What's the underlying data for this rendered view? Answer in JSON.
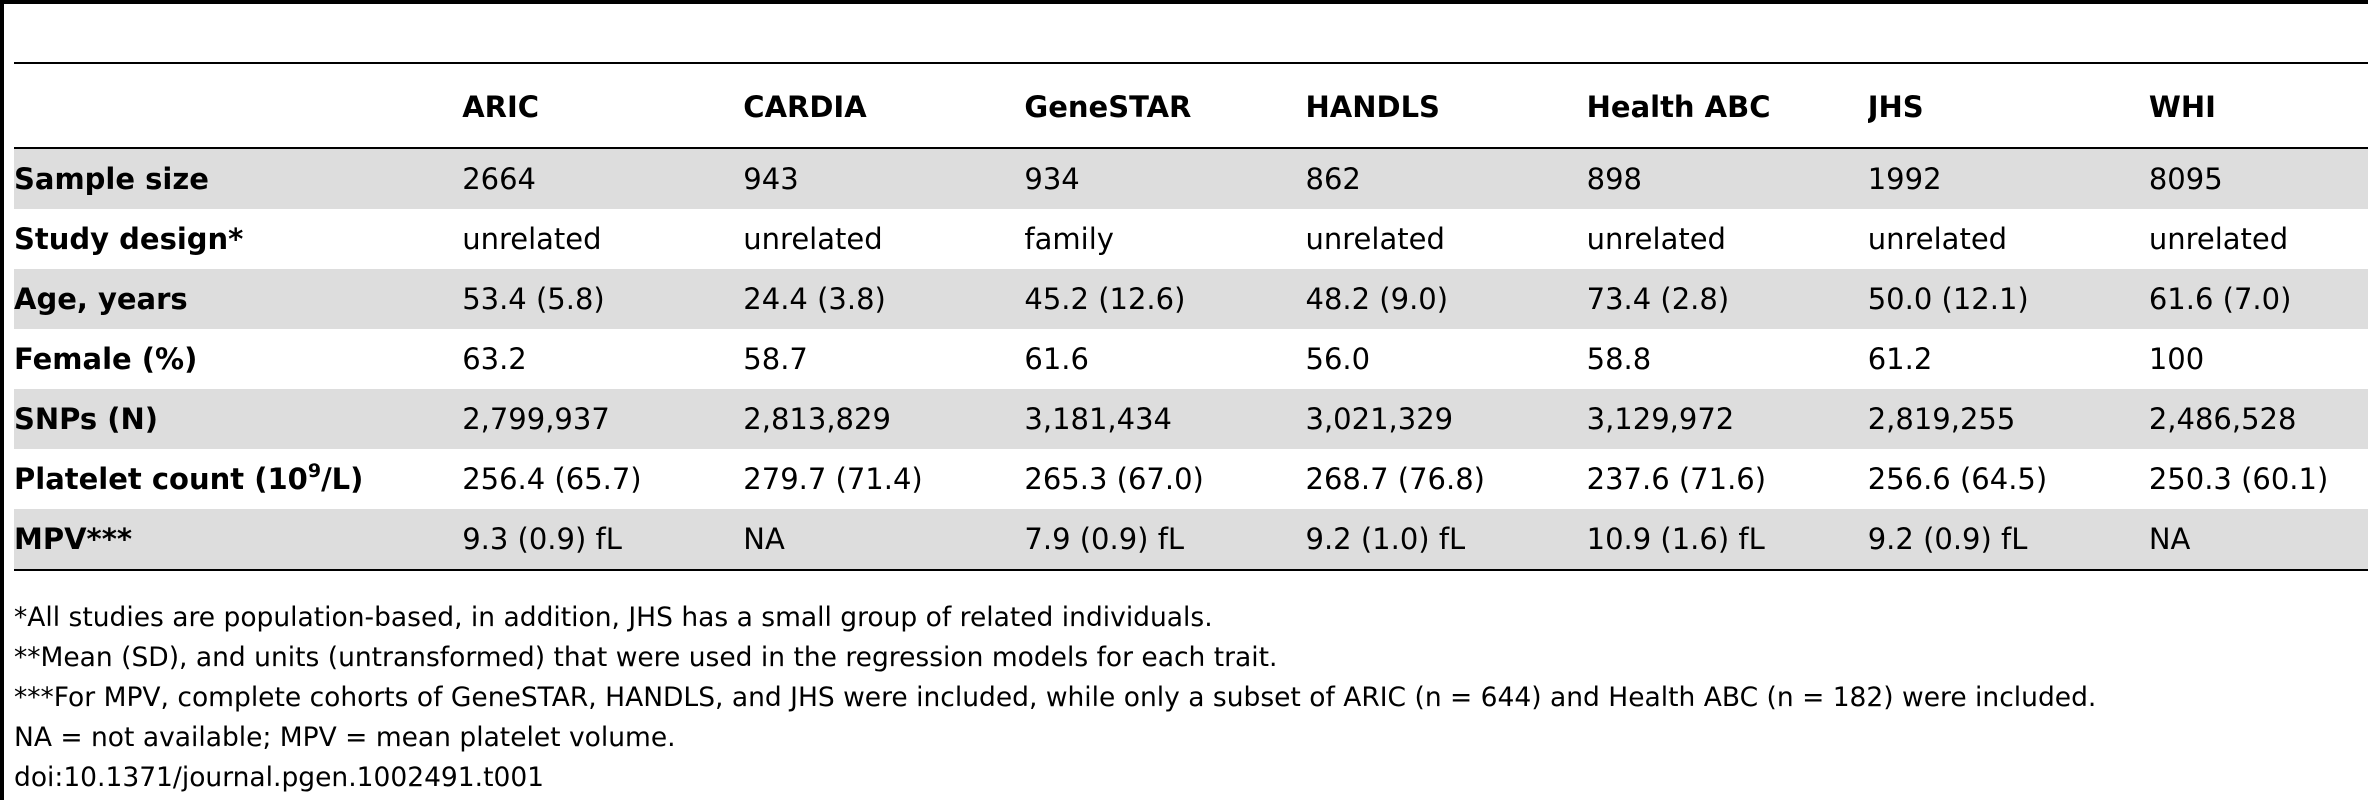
{
  "table": {
    "columns": [
      "",
      "ARIC",
      "CARDIA",
      "GeneSTAR",
      "HANDLS",
      "Health ABC",
      "JHS",
      "WHI"
    ],
    "rows": [
      {
        "label": "Sample size",
        "label_sup": "",
        "label_after": "",
        "cells": [
          "2664",
          "943",
          "934",
          "862",
          "898",
          "1992",
          "8095"
        ]
      },
      {
        "label": "Study design*",
        "label_sup": "",
        "label_after": "",
        "cells": [
          "unrelated",
          "unrelated",
          "family",
          "unrelated",
          "unrelated",
          "unrelated",
          "unrelated"
        ]
      },
      {
        "label": "Age, years",
        "label_sup": "",
        "label_after": "",
        "cells": [
          "53.4 (5.8)",
          "24.4 (3.8)",
          "45.2 (12.6)",
          "48.2 (9.0)",
          "73.4 (2.8)",
          "50.0 (12.1)",
          "61.6 (7.0)"
        ]
      },
      {
        "label": "Female (%)",
        "label_sup": "",
        "label_after": "",
        "cells": [
          "63.2",
          "58.7",
          "61.6",
          "56.0",
          "58.8",
          "61.2",
          "100"
        ]
      },
      {
        "label": "SNPs (N)",
        "label_sup": "",
        "label_after": "",
        "cells": [
          "2,799,937",
          "2,813,829",
          "3,181,434",
          "3,021,329",
          "3,129,972",
          "2,819,255",
          "2,486,528"
        ]
      },
      {
        "label": "Platelet count (10",
        "label_sup": "9",
        "label_after": "/L)",
        "cells": [
          "256.4 (65.7)",
          "279.7 (71.4)",
          "265.3 (67.0)",
          "268.7 (76.8)",
          "237.6 (71.6)",
          "256.6 (64.5)",
          "250.3 (60.1)"
        ]
      },
      {
        "label": "MPV***",
        "label_sup": "",
        "label_after": "",
        "cells": [
          "9.3 (0.9) fL",
          "NA",
          "7.9 (0.9) fL",
          "9.2 (1.0) fL",
          "10.9 (1.6) fL",
          "9.2 (0.9) fL",
          "NA"
        ]
      }
    ]
  },
  "footnotes": [
    "*All studies are population-based, in addition, JHS has a small group of related individuals.",
    "**Mean (SD), and units (untransformed) that were used in the regression models for each trait.",
    "***For MPV, complete cohorts of GeneSTAR, HANDLS, and JHS were included, while only a subset of ARIC (n = 644) and Health ABC (n = 182) were included.",
    "NA = not available; MPV = mean platelet volume.",
    "doi:10.1371/journal.pgen.1002491.t001"
  ]
}
